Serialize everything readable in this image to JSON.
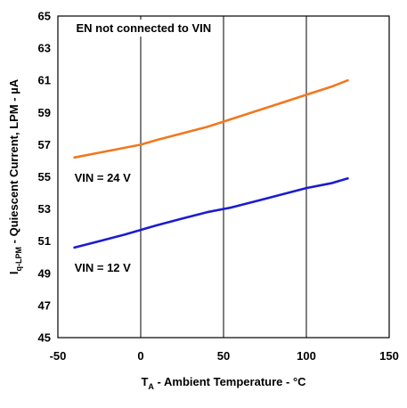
{
  "chart_data": {
    "type": "line",
    "title": "",
    "xlabel": {
      "prefix": "T",
      "subscript": "A",
      "rest": " - Ambient Temperature - °C"
    },
    "ylabel": {
      "prefix": "I",
      "subscript": "q-LPM",
      "rest": " - Quiescent Current, LPM - µA"
    },
    "xlim": [
      -50,
      150
    ],
    "ylim": [
      45,
      65
    ],
    "xticks": [
      -50,
      0,
      50,
      100,
      150
    ],
    "yticks": [
      45,
      47,
      49,
      51,
      53,
      55,
      57,
      59,
      61,
      63,
      65
    ],
    "grid": {
      "vertical": true,
      "horizontal": false
    },
    "series": [
      {
        "name": "VIN = 24 V",
        "color": "#F07820",
        "x": [
          -40,
          -25,
          -10,
          0,
          10,
          25,
          40,
          55,
          70,
          85,
          100,
          115,
          125
        ],
        "y": [
          56.2,
          56.5,
          56.8,
          57.0,
          57.3,
          57.7,
          58.1,
          58.6,
          59.1,
          59.6,
          60.1,
          60.6,
          61.0
        ]
      },
      {
        "name": "VIN = 12 V",
        "color": "#1C1CCF",
        "x": [
          -40,
          -25,
          -10,
          0,
          10,
          25,
          40,
          55,
          70,
          85,
          100,
          115,
          125
        ],
        "y": [
          50.6,
          51.0,
          51.4,
          51.7,
          52.0,
          52.4,
          52.8,
          53.1,
          53.5,
          53.9,
          54.3,
          54.6,
          54.9
        ]
      }
    ],
    "annotations": [
      {
        "text": "EN not connected to VIN",
        "x": -39,
        "y": 64
      },
      {
        "text": "VIN = 24 V",
        "x": -40,
        "y": 54.7
      },
      {
        "text": "VIN = 12 V",
        "x": -40,
        "y": 49.1
      }
    ]
  }
}
